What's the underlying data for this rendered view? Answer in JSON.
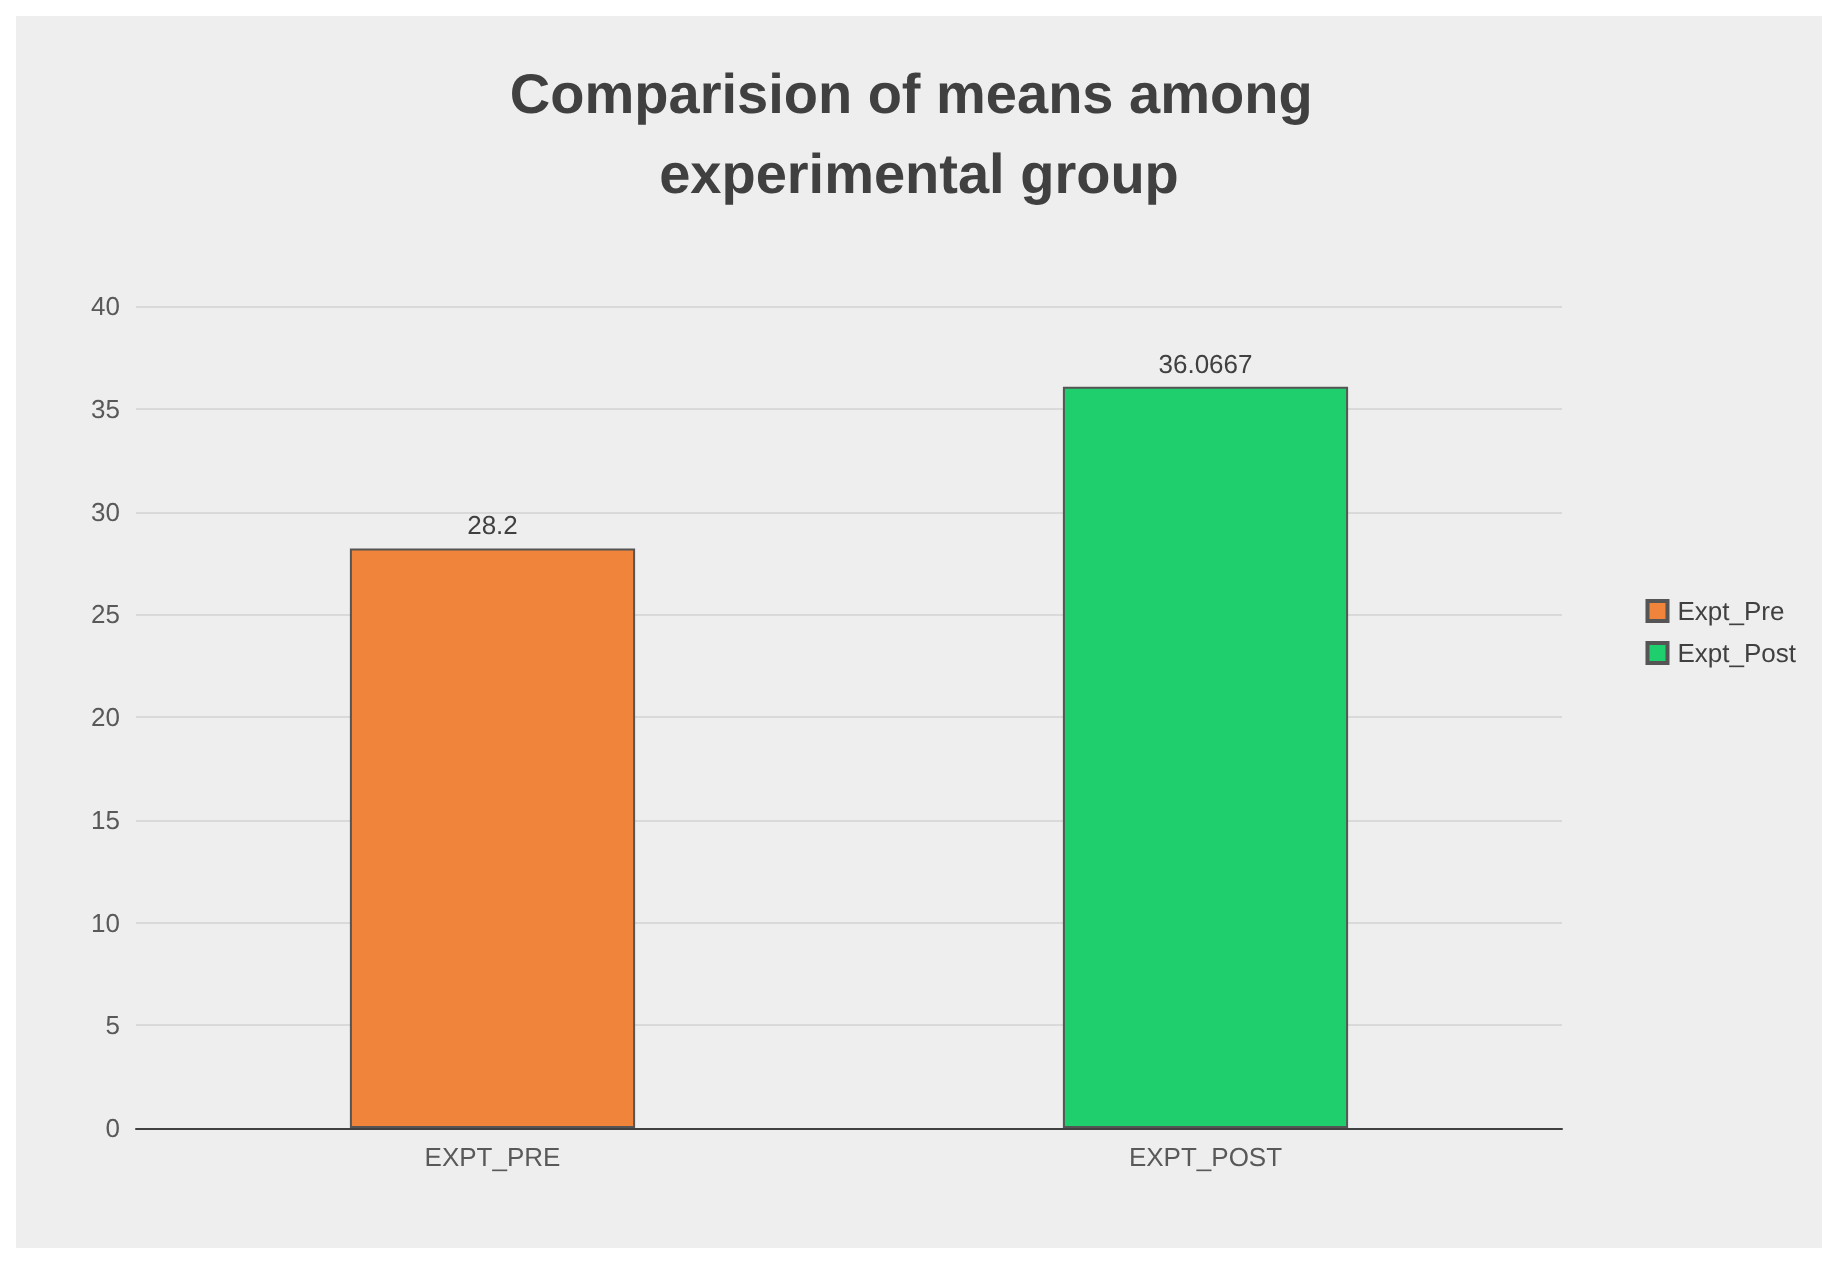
{
  "chart_data": {
    "type": "bar",
    "title": "Comparision of means among experimental group",
    "categories": [
      "EXPT_PRE",
      "EXPT_POST"
    ],
    "series": [
      {
        "name": "Expt_Pre",
        "color": "#f0843a",
        "values": [
          28.2,
          null
        ]
      },
      {
        "name": "Expt_Post",
        "color": "#1fcf6e",
        "values": [
          null,
          36.0667
        ]
      }
    ],
    "ylim": [
      0,
      40
    ],
    "yticks": [
      0,
      5,
      10,
      15,
      20,
      25,
      30,
      35,
      40
    ],
    "grid": "y",
    "legend": "right",
    "data_labels": true
  }
}
